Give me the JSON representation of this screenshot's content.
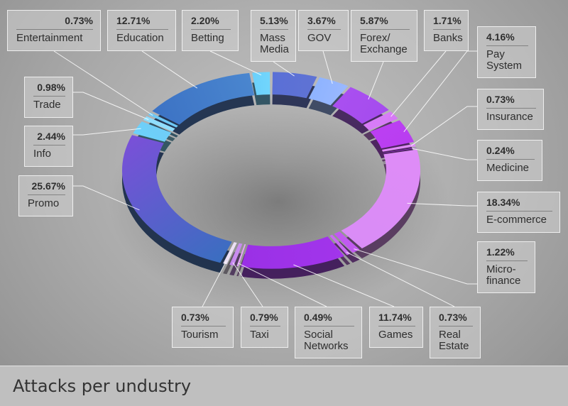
{
  "chart_data": {
    "type": "pie",
    "title": "Attacks per undustry",
    "categories": [
      "Mass Media",
      "GOV",
      "Forex/\nExchange",
      "Banks",
      "Pay\nSystem",
      "Insurance",
      "Medicine",
      "E-commerce",
      "Micro-\nfinance",
      "Real\nEstate",
      "Games",
      "Social\nNetworks",
      "Taxi",
      "Tourism",
      "Promo",
      "Info",
      "Trade",
      "Entertainment",
      "Education",
      "Betting"
    ],
    "values": [
      5.13,
      3.67,
      5.87,
      1.71,
      4.16,
      0.73,
      0.24,
      18.34,
      1.22,
      0.73,
      11.74,
      0.49,
      0.79,
      0.73,
      25.67,
      2.44,
      0.98,
      0.73,
      12.71,
      2.2
    ],
    "percent_labels": [
      "5.13%",
      "3.67%",
      "5.87%",
      "1.71%",
      "4.16%",
      "0.73%",
      "0.24%",
      "18.34%",
      "1.22%",
      "0.73%",
      "11.74%",
      "0.49%",
      "0.79%",
      "0.73%",
      "25.67%",
      "2.44%",
      "0.98%",
      "0.73%",
      "12.71%",
      "2.20%"
    ],
    "colors": [
      "#5a6fd6",
      "#8fb4ff",
      "#a94ff0",
      "#d77cf7",
      "#bb3ff2",
      "#e08cf8",
      "#b03af0",
      "#df8cf7",
      "#c45cf3",
      "#cf78f5",
      "#a235eb",
      "#e6a4f8",
      "#c98cf0",
      "#ece0f4",
      "#3a6ec0",
      "#6cd2fb",
      "#8ce2ff",
      "#6ac8f6",
      "#3c72c4",
      "#6ad0fb"
    ],
    "colors_2": [
      "#5f73d4",
      "#9ab8ff",
      "#a54ced",
      "#d678f5",
      "#b83ef0",
      "#de88f6",
      "#ac36ec",
      "#d98cf6",
      "#c05af0",
      "#c96cf2",
      "#9a30e6",
      "#d6a0f6",
      "#c080ec",
      "#e6dbef",
      "#7a50d8",
      "#6fcef8",
      "#90deff",
      "#6ec9f7",
      "#4a86cf",
      "#72d6fc"
    ],
    "legend": "labels-around"
  }
}
